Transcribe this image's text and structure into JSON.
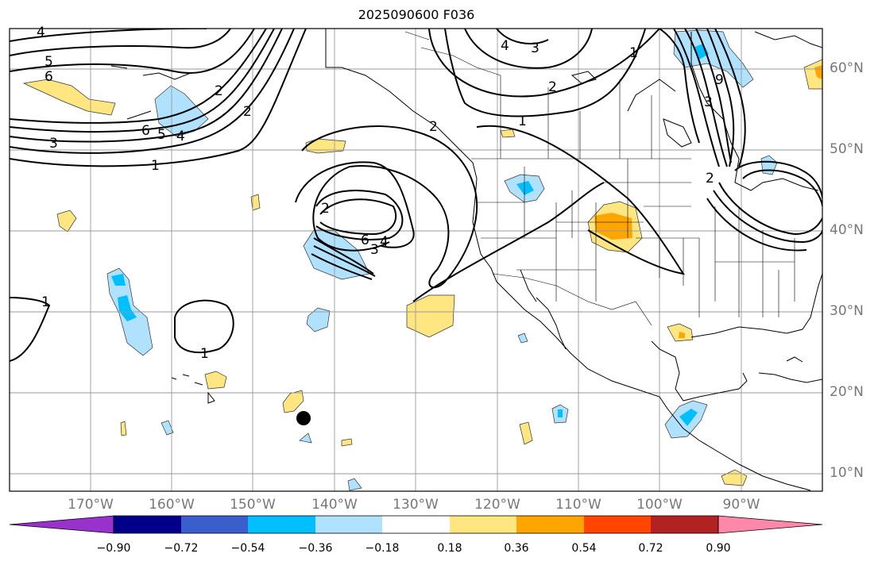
{
  "title": "2025090600 F036",
  "map": {
    "lon_labels": [
      "170°W",
      "160°W",
      "150°W",
      "140°W",
      "130°W",
      "120°W",
      "110°W",
      "100°W",
      "90°W"
    ],
    "lat_labels": [
      "60°N",
      "50°N",
      "40°N",
      "30°N",
      "20°N",
      "10°N"
    ],
    "contour_labels": [
      "4",
      "5",
      "6",
      "3",
      "1",
      "6",
      "5",
      "4",
      "2",
      "2",
      "4",
      "3",
      "2",
      "1",
      "1",
      "2",
      "6",
      "4",
      "3",
      "1",
      "1",
      "2",
      "3",
      "9",
      "2"
    ],
    "marker_icon": "storm-center-dot-icon"
  },
  "colorbar": {
    "tick_labels": [
      "−0.90",
      "−0.72",
      "−0.54",
      "−0.36",
      "−0.18",
      "0.18",
      "0.36",
      "0.54",
      "0.72",
      "0.90"
    ],
    "colors": [
      "#9932cc",
      "#00008b",
      "#3a5fcd",
      "#00bfff",
      "#b0e2ff",
      "#ffffff",
      "#ffe680",
      "#ffa500",
      "#ff4500",
      "#b22222",
      "#ff88aa"
    ]
  }
}
